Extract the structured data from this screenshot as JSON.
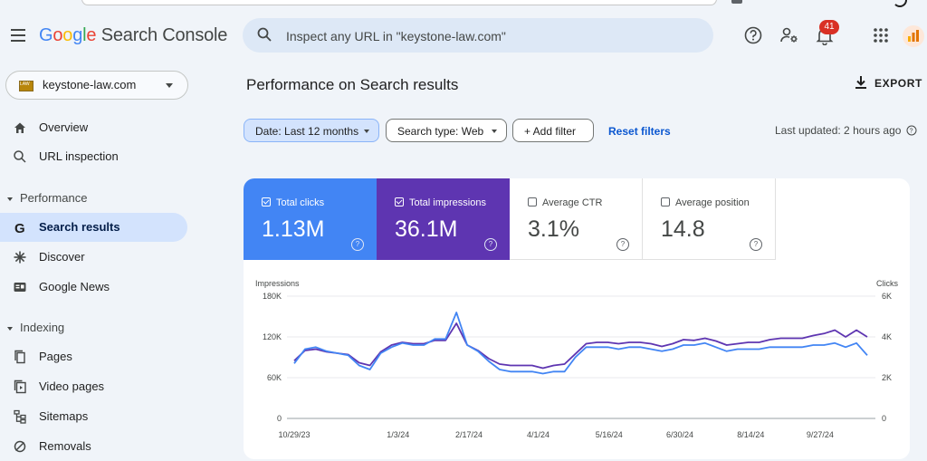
{
  "app": {
    "logo_google": [
      "G",
      "o",
      "o",
      "g",
      "l",
      "e"
    ],
    "logo_product": "Search Console"
  },
  "search": {
    "placeholder": "Inspect any URL in \"keystone-law.com\""
  },
  "notifications": {
    "count": "41"
  },
  "property": {
    "name": "keystone-law.com",
    "favicon_text": "LAW"
  },
  "sidebar": {
    "overview": "Overview",
    "url_inspection": "URL inspection",
    "performance_section": "Performance",
    "search_results": "Search results",
    "discover": "Discover",
    "google_news": "Google News",
    "indexing_section": "Indexing",
    "pages": "Pages",
    "video_pages": "Video pages",
    "sitemaps": "Sitemaps",
    "removals": "Removals"
  },
  "main": {
    "title": "Performance on Search results",
    "export_label": "EXPORT",
    "filters": {
      "date": "Date: Last 12 months",
      "type": "Search type: Web",
      "add": "+ Add filter",
      "reset": "Reset filters"
    },
    "last_updated": "Last updated: 2 hours ago"
  },
  "metrics": {
    "clicks": {
      "label": "Total clicks",
      "value": "1.13M",
      "checked": true
    },
    "impressions": {
      "label": "Total impressions",
      "value": "36.1M",
      "checked": true
    },
    "ctr": {
      "label": "Average CTR",
      "value": "3.1%",
      "checked": false
    },
    "position": {
      "label": "Average position",
      "value": "14.8",
      "checked": false
    }
  },
  "colors": {
    "clicks": "#4285f4",
    "impressions": "#5e35b1"
  },
  "chart_data": {
    "type": "line",
    "left_axis_label": "Impressions",
    "right_axis_label": "Clicks",
    "left_ticks": [
      "180K",
      "120K",
      "60K",
      "0"
    ],
    "left_tick_values": [
      180000,
      120000,
      60000,
      0
    ],
    "right_ticks": [
      "6K",
      "4K",
      "2K",
      "0"
    ],
    "right_tick_values": [
      6000,
      4000,
      2000,
      0
    ],
    "ylim_left": [
      0,
      180000
    ],
    "ylim_right": [
      0,
      6000
    ],
    "x_ticks": [
      "10/29/23",
      "1/3/24",
      "2/17/24",
      "4/1/24",
      "5/16/24",
      "6/30/24",
      "8/14/24",
      "9/27/24"
    ],
    "x_start": "2023-10-29",
    "x_end": "2024-10-27",
    "series": [
      {
        "name": "Total clicks",
        "axis": "right",
        "color": "#4285f4",
        "values": [
          2700,
          3400,
          3500,
          3300,
          3200,
          3100,
          2600,
          2400,
          3200,
          3500,
          3700,
          3600,
          3600,
          3900,
          3900,
          5200,
          3600,
          3300,
          2800,
          2400,
          2300,
          2300,
          2300,
          2200,
          2300,
          2300,
          3000,
          3500,
          3500,
          3500,
          3400,
          3500,
          3500,
          3400,
          3300,
          3400,
          3600,
          3600,
          3700,
          3500,
          3300,
          3400,
          3400,
          3400,
          3500,
          3500,
          3500,
          3500,
          3600,
          3600,
          3700,
          3500,
          3700,
          3100
        ]
      },
      {
        "name": "Total impressions",
        "axis": "left",
        "color": "#5e35b1",
        "values": [
          85000,
          100000,
          102000,
          98000,
          96000,
          94000,
          82000,
          78000,
          98000,
          108000,
          112000,
          110000,
          110000,
          115000,
          115000,
          140000,
          108000,
          100000,
          88000,
          80000,
          78000,
          78000,
          78000,
          74000,
          78000,
          80000,
          95000,
          110000,
          112000,
          112000,
          110000,
          112000,
          112000,
          110000,
          106000,
          110000,
          116000,
          115000,
          118000,
          114000,
          108000,
          110000,
          112000,
          112000,
          116000,
          118000,
          118000,
          118000,
          122000,
          125000,
          130000,
          120000,
          130000,
          120000
        ]
      }
    ]
  }
}
